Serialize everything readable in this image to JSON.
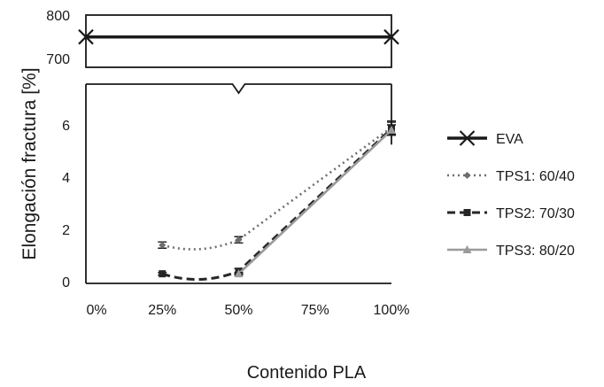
{
  "chart_data": {
    "type": "line",
    "title": "",
    "xlabel": "Contenido PLA",
    "ylabel": "Elongación fractura [%]",
    "x_categories": [
      "0%",
      "25%",
      "50%",
      "75%",
      "100%"
    ],
    "x_values": [
      0,
      25,
      50,
      75,
      100
    ],
    "xlim": [
      0,
      100
    ],
    "y_axis_break": true,
    "y_lower_range": [
      0,
      6.6
    ],
    "y_lower_ticks": [
      "0",
      "2",
      "4",
      "6"
    ],
    "y_lower_tick_values": [
      0,
      2,
      4,
      6
    ],
    "y_upper_range": [
      680,
      800
    ],
    "y_upper_ticks": [
      "700",
      "800"
    ],
    "y_upper_tick_values": [
      700,
      800
    ],
    "grid": false,
    "legend_position": "right",
    "series": [
      {
        "name": "EVA",
        "panel": "upper",
        "style": "solid-thick",
        "marker": "x",
        "color": "#1a1a1a",
        "x": [
          0,
          100
        ],
        "y": [
          750,
          750
        ],
        "error": [
          0,
          0
        ]
      },
      {
        "name": "TPS1: 60/40",
        "panel": "lower",
        "style": "dotted",
        "marker": "diamond",
        "color": "#6e6e6e",
        "x": [
          25,
          50,
          100
        ],
        "y": [
          1.4,
          1.6,
          5.9
        ],
        "error": [
          0.12,
          0.12,
          0.25
        ]
      },
      {
        "name": "TPS2: 70/30",
        "panel": "lower",
        "style": "dashed-thick",
        "marker": "square",
        "color": "#262626",
        "x": [
          25,
          50,
          100
        ],
        "y": [
          0.3,
          0.4,
          5.85
        ],
        "error": [
          0.05,
          0.1,
          0.25
        ]
      },
      {
        "name": "TPS3: 80/20",
        "panel": "lower",
        "style": "solid",
        "marker": "triangle",
        "color": "#9a9a9a",
        "x": [
          50,
          100
        ],
        "y": [
          0.3,
          5.8
        ],
        "error": [
          0.05,
          0.2
        ]
      }
    ]
  }
}
